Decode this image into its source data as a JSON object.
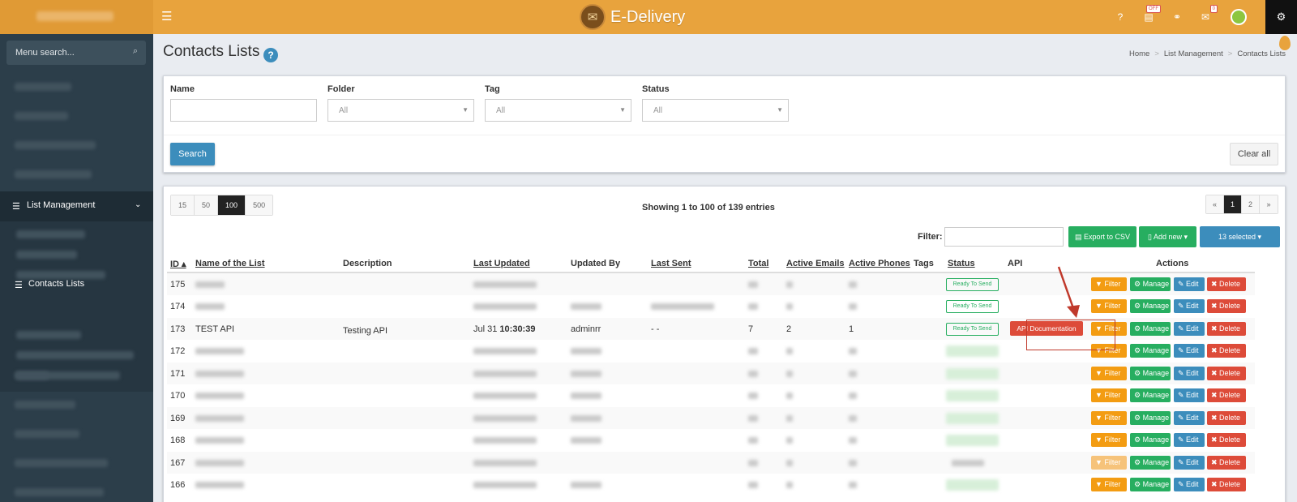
{
  "app": {
    "brand": "E-Delivery",
    "brand_icon": "envelope-icon"
  },
  "topbar": {
    "icons": [
      "help-icon",
      "offer-icon",
      "link-icon",
      "mail-icon"
    ],
    "offer_badge": "OFF",
    "mail_badge": "0"
  },
  "sidebar": {
    "search_placeholder": "Menu search...",
    "active_section": "List Management",
    "active_item": "Contacts Lists"
  },
  "page": {
    "title": "Contacts Lists",
    "breadcrumb": [
      "Home",
      "List Management",
      "Contacts Lists"
    ]
  },
  "filters": {
    "name_label": "Name",
    "folder_label": "Folder",
    "folder_value": "All",
    "tag_label": "Tag",
    "tag_value": "All",
    "status_label": "Status",
    "status_value": "All",
    "search_button": "Search",
    "clear_button": "Clear all"
  },
  "table_controls": {
    "page_sizes": [
      "15",
      "50",
      "100",
      "500"
    ],
    "active_page_size": "100",
    "showing": "Showing 1 to 100 of 139 entries",
    "pager": [
      "«",
      "1",
      "2",
      "»"
    ],
    "filter_label": "Filter:",
    "export_button": "Export to CSV",
    "addnew_button": "Add new",
    "selected_button": "13 selected"
  },
  "columns": [
    "ID",
    "Name of the List",
    "Description",
    "Last Updated",
    "Updated By",
    "Last Sent",
    "Total",
    "Active Emails",
    "Active Phones",
    "Tags",
    "Status",
    "API",
    "Actions"
  ],
  "row_ids": [
    "175",
    "174",
    "173",
    "172",
    "171",
    "170",
    "169",
    "168",
    "167",
    "166"
  ],
  "highlight_row": {
    "name": "TEST API",
    "description": "Testing API",
    "last_updated_date": "Jul 31",
    "last_updated_time": "10:30:39",
    "updated_by": "adminrr",
    "last_sent": "- -",
    "total": "7",
    "active_emails": "2",
    "active_phones": "1",
    "api_button": "API Documentation"
  },
  "status_ready": "Ready To Send",
  "actions": {
    "filter": "Filter",
    "manage": "Manage",
    "edit": "Edit",
    "delete": "Delete"
  },
  "colors": {
    "topbar": "#e8a33d",
    "sidebar": "#2c3e4a",
    "primary": "#3c8dbc",
    "success": "#27ae60",
    "warning": "#f39c12",
    "danger": "#dd4b39"
  }
}
